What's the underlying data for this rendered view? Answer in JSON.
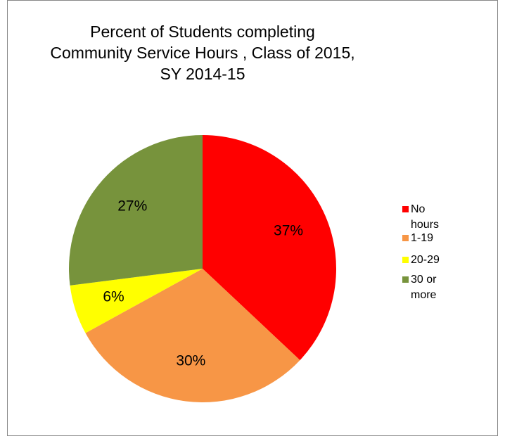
{
  "chart_data": {
    "type": "pie",
    "title": "Percent of Students completing\nCommunity Service Hours , Class of 2015,\nSY 2014-15",
    "categories": [
      "No hours",
      "1-19",
      "20-29",
      "30 or more"
    ],
    "values": [
      37,
      30,
      6,
      27
    ],
    "value_labels": [
      "37%",
      "30%",
      "6%",
      "27%"
    ],
    "colors": [
      "#ff0000",
      "#f79646",
      "#ffff00",
      "#77933c"
    ],
    "legend": "right"
  }
}
